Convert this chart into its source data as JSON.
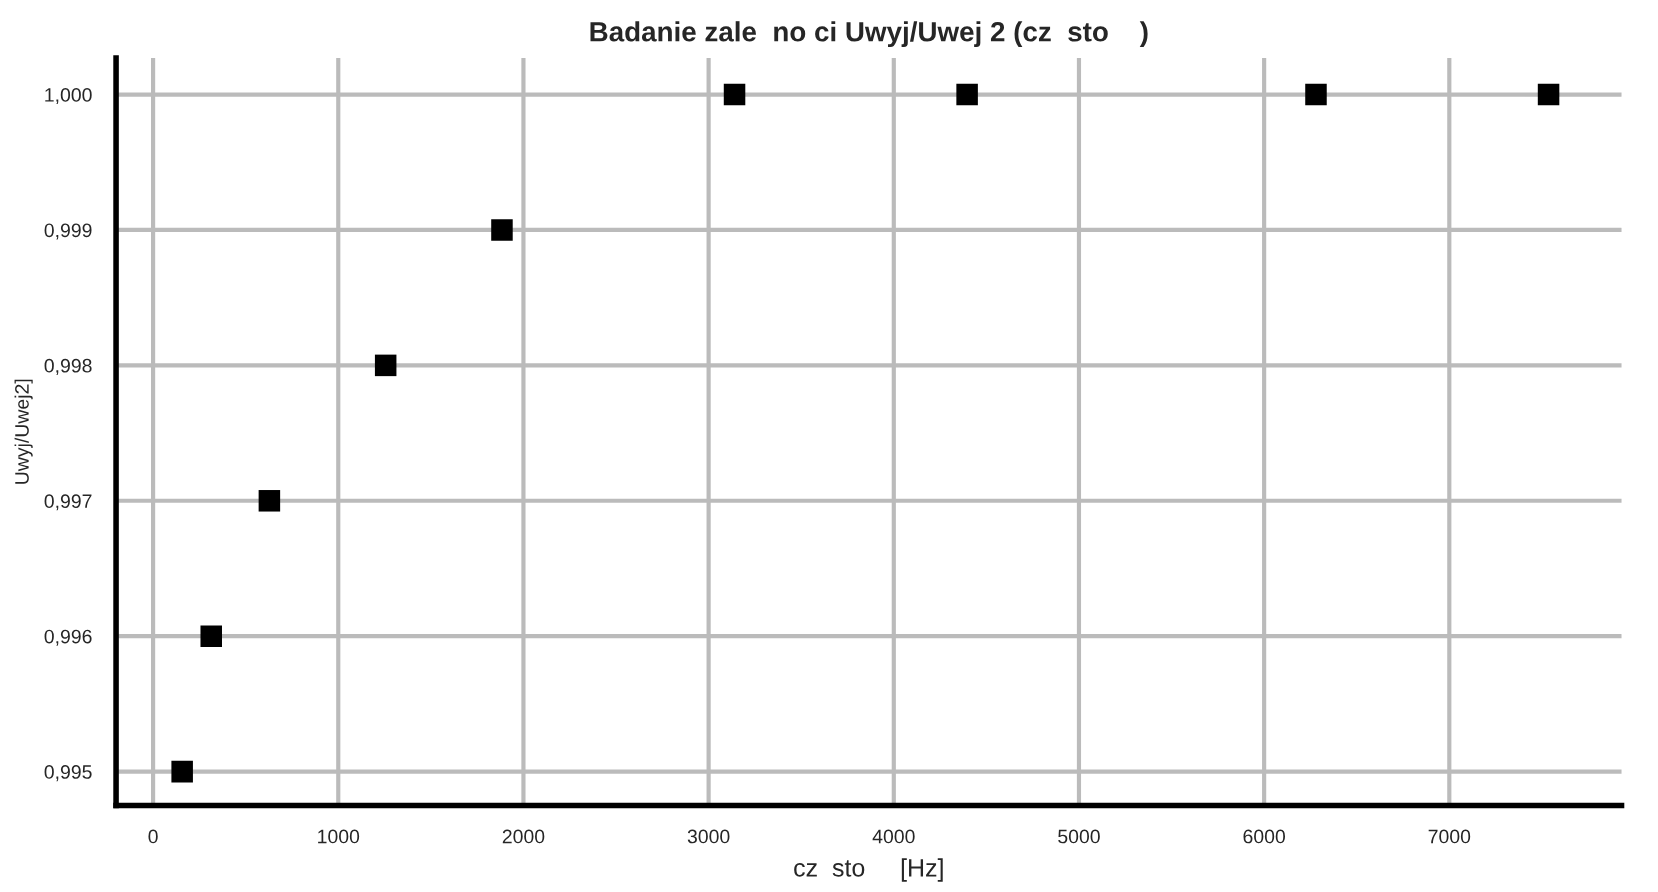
{
  "chart_data": {
    "type": "scatter",
    "title": "Badanie zale  no ci Uwyj/Uwej 2 (cz  sto    )",
    "xlabel": "cz  sto     [Hz]",
    "ylabel": "Uwyj/Uwej2]",
    "x": [
      157,
      314,
      628,
      1256,
      1884,
      3140,
      4396,
      6280,
      7536
    ],
    "series": [
      {
        "color": "#000000",
        "values": [
          0.995,
          0.996,
          0.997,
          0.998,
          0.999,
          1.0,
          1.0,
          1.0,
          1.0
        ]
      }
    ],
    "marker": "square",
    "grid": true,
    "xlim": [
      -200,
      7930
    ],
    "xticks": [
      0,
      1000,
      2000,
      3000,
      4000,
      5000,
      6000,
      7000
    ],
    "ylim": [
      0.99475,
      1.00027
    ],
    "yticks": [
      {
        "value": 0.995,
        "label": "0,995"
      },
      {
        "value": 0.996,
        "label": "0,996"
      },
      {
        "value": 0.997,
        "label": "0,997"
      },
      {
        "value": 0.998,
        "label": "0,998"
      },
      {
        "value": 0.999,
        "label": "0,999"
      },
      {
        "value": 1.0,
        "label": "1,000"
      }
    ]
  }
}
